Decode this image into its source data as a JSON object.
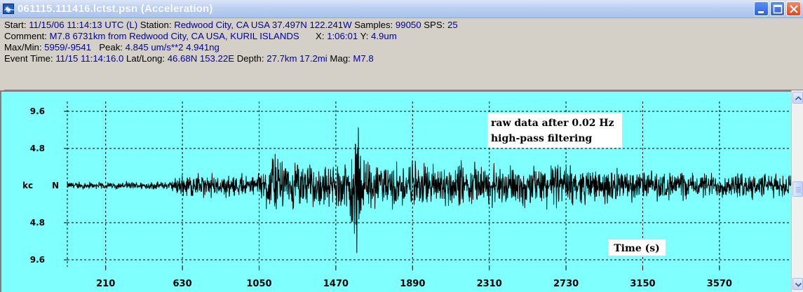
{
  "window": {
    "title": "061115.111416.lctst.psn (Acceleration)",
    "icon": "seismograph-app-icon",
    "controls": [
      "minimize-icon",
      "maximize-icon",
      "close-icon"
    ]
  },
  "info": {
    "start_label": "Start:",
    "start_value": "11/15/06 11:14:13 UTC (L)",
    "station_label": "Station:",
    "station_value": "Redwood City, CA USA 37.497N 122.241W",
    "samples_label": "Samples:",
    "samples_value": "99050",
    "sps_label": "SPS:",
    "sps_value": "25",
    "comment_label": "Comment:",
    "comment_value": "M7.8 6731km from Redwood City, CA USA, KURIL ISLANDS",
    "x_label": "X:",
    "x_value": "1:06:01",
    "y_label": "Y:",
    "y_value": "4.9um",
    "maxmin_label": "Max/Min:",
    "maxmin_value": "5959/-9541",
    "peak_label": "Peak:",
    "peak_value": "4.845 um/s**2 4.941ng",
    "event_label": "Event Time:",
    "event_value": "11/15 11:14:16.0",
    "latlong_label": "Lat/Long:",
    "latlong_value": "46.68N 153.22E",
    "depth_label": "Depth:",
    "depth_value": "27.7km 17.2mi",
    "mag_label": "Mag:",
    "mag_value": "M7.8"
  },
  "chart_data": {
    "type": "line",
    "title": "",
    "xlabel": "Time (s)",
    "ylabel": "kc",
    "channel": "N",
    "annotation": [
      "raw data after 0.02 Hz",
      "high-pass filtering"
    ],
    "y_ticks": [
      "9.6",
      "4.8",
      "4.8",
      "9.6"
    ],
    "y_tick_values": [
      9.6,
      4.8,
      -4.8,
      -9.6
    ],
    "ylim": [
      -10.5,
      10.5
    ],
    "x_ticks": [
      210,
      630,
      1050,
      1470,
      1890,
      2310,
      2730,
      3150,
      3570
    ],
    "xlim": [
      0,
      3962
    ],
    "grid": "dashed",
    "series": [
      {
        "color": "#000000",
        "envelope": {
          "t": [
            0,
            300,
            330,
            560,
            620,
            700,
            1050,
            1100,
            1200,
            1350,
            1420,
            1460,
            1500,
            1540,
            1560,
            1580,
            1600,
            1630,
            1680,
            1900,
            2100,
            2300,
            2500,
            2680,
            2750,
            3000,
            3300,
            3962
          ],
          "amp": [
            0.5,
            0.5,
            0.6,
            0.6,
            1.8,
            1.6,
            1.6,
            4.4,
            3.6,
            3.2,
            2.8,
            3.2,
            3.6,
            5.2,
            6.2,
            9.4,
            6.5,
            4.6,
            3.0,
            3.2,
            3.4,
            2.9,
            2.9,
            3.3,
            2.8,
            2.3,
            2.0,
            1.8
          ]
        }
      }
    ]
  },
  "scrollbar": {
    "up_icon": "scroll-up-arrow-icon",
    "down_icon": "scroll-down-arrow-icon",
    "thumb_icon": "scroll-thumb-grip-icon"
  }
}
